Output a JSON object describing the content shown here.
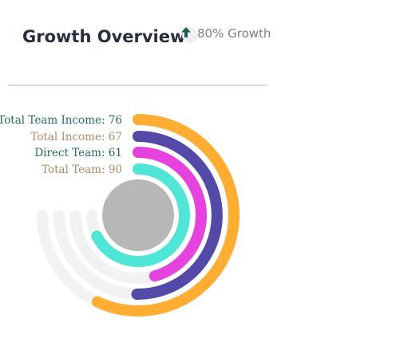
{
  "header": {
    "title": "Growth Overview",
    "growth_text": "80% Growth",
    "growth_icon": "arrow-up-icon"
  },
  "colors": {
    "track": "#f2f2f2",
    "center": "#b7b7b7",
    "label_green": "#276a60",
    "label_brown": "#b08a68"
  },
  "chart_data": {
    "type": "radialBar",
    "max": 100,
    "series": [
      {
        "name": "Total Team Income",
        "label": "Total Team Income: 76",
        "value": 76,
        "color": "#ffae33"
      },
      {
        "name": "Total Income",
        "label": "Total Income: 67",
        "value": 67,
        "color": "#534aa8"
      },
      {
        "name": "Direct Team",
        "label": "Direct Team: 61",
        "value": 61,
        "color": "#e443dd"
      },
      {
        "name": "Total Team",
        "label": "Total Team: 90",
        "value": 90,
        "color": "#4fe6d8"
      }
    ]
  }
}
